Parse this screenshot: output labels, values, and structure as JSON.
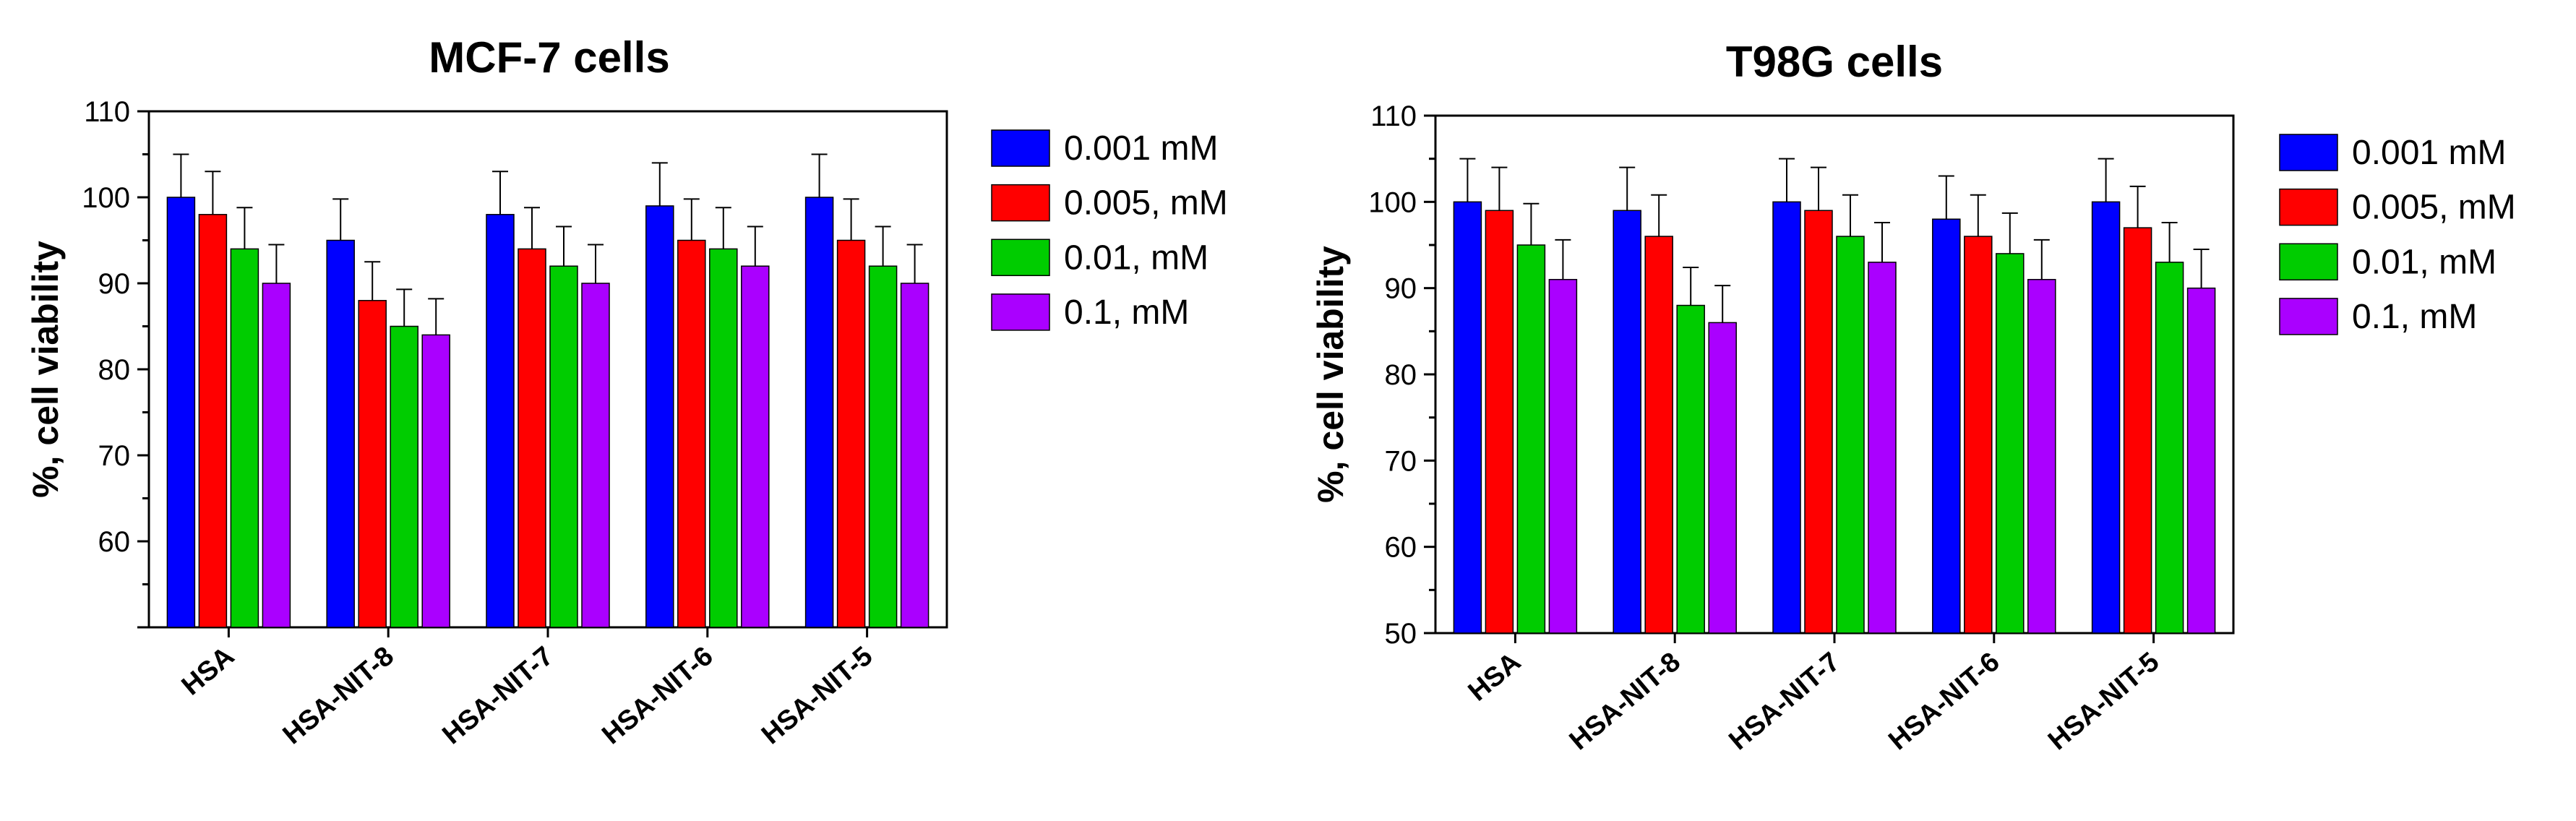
{
  "chart_data": [
    {
      "type": "bar",
      "title": "MCF-7 cells",
      "xlabel": "",
      "ylabel": "%, cell viability",
      "ylim": [
        50,
        110
      ],
      "yticks": [
        60,
        70,
        80,
        90,
        100,
        110
      ],
      "categories": [
        "HSA",
        "HSA-NIT-8",
        "HSA-NIT-7",
        "HSA-NIT-6",
        "HSA-NIT-5"
      ],
      "series": [
        {
          "name": "0.001 mM",
          "color": "#0000ff",
          "values": [
            100,
            95,
            98,
            99,
            100
          ],
          "errors": [
            5,
            4.8,
            5,
            5,
            5
          ]
        },
        {
          "name": "0.005, mM",
          "color": "#ff0000",
          "values": [
            98,
            88,
            94,
            95,
            95
          ],
          "errors": [
            5,
            4.5,
            4.8,
            4.8,
            4.8
          ]
        },
        {
          "name": "0.01, mM",
          "color": "#00cc00",
          "values": [
            94,
            85,
            92,
            94,
            92
          ],
          "errors": [
            4.8,
            4.3,
            4.6,
            4.8,
            4.6
          ]
        },
        {
          "name": "0.1, mM",
          "color": "#aa00ff",
          "values": [
            90,
            84,
            90,
            92,
            90
          ],
          "errors": [
            4.5,
            4.2,
            4.5,
            4.6,
            4.5
          ]
        }
      ],
      "legend_position": "right"
    },
    {
      "type": "bar",
      "title": "T98G cells",
      "xlabel": "",
      "ylabel": "%, cell viability",
      "ylim": [
        50,
        110
      ],
      "yticks": [
        50,
        60,
        70,
        80,
        90,
        100,
        110
      ],
      "categories": [
        "HSA",
        "HSA-NIT-8",
        "HSA-NIT-7",
        "HSA-NIT-6",
        "HSA-NIT-5"
      ],
      "series": [
        {
          "name": "0.001 mM",
          "color": "#0000ff",
          "values": [
            100,
            99,
            100,
            98,
            100
          ],
          "errors": [
            5,
            5,
            5,
            5,
            5
          ]
        },
        {
          "name": "0.005, mM",
          "color": "#ff0000",
          "values": [
            99,
            96,
            99,
            96,
            97
          ],
          "errors": [
            5,
            4.8,
            5,
            4.8,
            4.8
          ]
        },
        {
          "name": "0.01, mM",
          "color": "#00cc00",
          "values": [
            95,
            88,
            96,
            94,
            93
          ],
          "errors": [
            4.8,
            4.4,
            4.8,
            4.7,
            4.6
          ]
        },
        {
          "name": "0.1, mM",
          "color": "#aa00ff",
          "values": [
            91,
            86,
            93,
            91,
            90
          ],
          "errors": [
            4.6,
            4.3,
            4.6,
            4.6,
            4.5
          ]
        }
      ],
      "legend_position": "right"
    }
  ]
}
